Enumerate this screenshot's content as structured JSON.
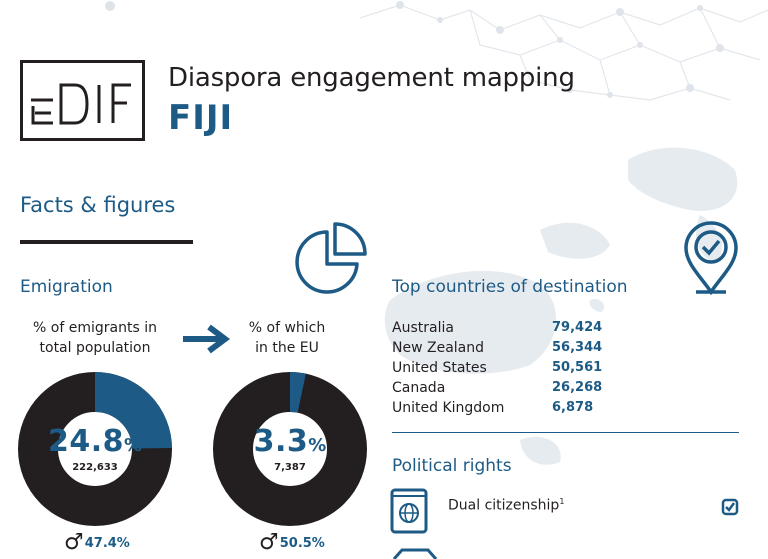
{
  "brand": {
    "logo_text": "EUDIF"
  },
  "header": {
    "title": "Diaspora engagement mapping",
    "country": "FIJI"
  },
  "facts": {
    "heading": "Facts & figures"
  },
  "emigration": {
    "heading": "Emigration",
    "emigrants": {
      "caption_line1": "% of emigrants in",
      "caption_line2": "total population",
      "value": "24.8",
      "unit": "%",
      "count": "222,633",
      "share": 0.248,
      "male_pct": "47.4%"
    },
    "eu": {
      "caption_line1": "% of which",
      "caption_line2": "in the EU",
      "value": "3.3",
      "unit": "%",
      "count": "7,387",
      "share": 0.033,
      "male_pct": "50.5%"
    }
  },
  "destinations": {
    "heading": "Top countries of destination",
    "rows": [
      {
        "country": "Australia",
        "value": "79,424"
      },
      {
        "country": "New Zealand",
        "value": "56,344"
      },
      {
        "country": "United States",
        "value": "50,561"
      },
      {
        "country": "Canada",
        "value": "26,268"
      },
      {
        "country": "United Kingdom",
        "value": "6,878"
      }
    ]
  },
  "political": {
    "heading": "Political rights",
    "dual_citizenship_label": "Dual citizenship",
    "dual_citizenship_note": "1"
  },
  "colors": {
    "primary": "#1d5b86",
    "dark": "#231f20",
    "map": "#e6ebf0"
  },
  "icons": [
    "pie-chart-icon",
    "location-check-icon",
    "passport-icon",
    "checkbox-checked-icon",
    "male-icon"
  ]
}
